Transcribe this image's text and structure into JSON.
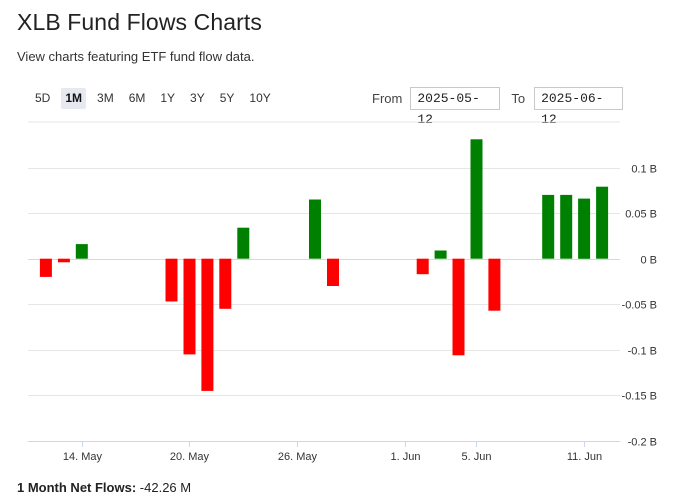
{
  "header": {
    "title": "XLB Fund Flows Charts",
    "subtitle": "View charts featuring ETF fund flow data."
  },
  "range_buttons": [
    "5D",
    "1M",
    "3M",
    "6M",
    "1Y",
    "3Y",
    "5Y",
    "10Y"
  ],
  "active_range": "1M",
  "date_range": {
    "from_label": "From",
    "from_value": "2025-05-12",
    "to_label": "To",
    "to_value": "2025-06-12"
  },
  "footer": {
    "label": "1 Month Net Flows:",
    "value": "-42.26 M"
  },
  "colors": {
    "positive": "#008000",
    "negative": "#ff0000"
  },
  "chart_data": {
    "type": "bar",
    "categories": [
      "2025-05-12",
      "2025-05-13",
      "2025-05-14",
      "2025-05-15",
      "2025-05-16",
      "2025-05-19",
      "2025-05-20",
      "2025-05-21",
      "2025-05-22",
      "2025-05-23",
      "2025-05-27",
      "2025-05-28",
      "2025-05-29",
      "2025-05-30",
      "2025-06-02",
      "2025-06-03",
      "2025-06-04",
      "2025-06-05",
      "2025-06-06",
      "2025-06-09",
      "2025-06-10",
      "2025-06-11",
      "2025-06-12"
    ],
    "values": [
      -0.02,
      -0.004,
      0.016,
      0,
      0,
      -0.047,
      -0.105,
      -0.145,
      -0.055,
      0.034,
      0.065,
      -0.03,
      0,
      0,
      -0.017,
      0.009,
      -0.106,
      0.131,
      -0.057,
      0.07,
      0.07,
      0.066,
      0.079
    ],
    "unit": "B",
    "ylim": [
      -0.2,
      0.15
    ],
    "yticks": [
      0.1,
      0.05,
      0,
      -0.05,
      -0.1,
      -0.15,
      -0.2
    ],
    "ytick_labels": [
      "0.1 B",
      "0.05 B",
      "0 B",
      "-0.05 B",
      "-0.1 B",
      "-0.15 B",
      "-0.2 B"
    ],
    "xtick_labels": [
      "14. May",
      "20. May",
      "26. May",
      "1. Jun",
      "5. Jun",
      "11. Jun"
    ],
    "xtick_dates": [
      "2025-05-14",
      "2025-05-20",
      "2025-05-26",
      "2025-06-01",
      "2025-06-05",
      "2025-06-11"
    ],
    "grid": true
  }
}
